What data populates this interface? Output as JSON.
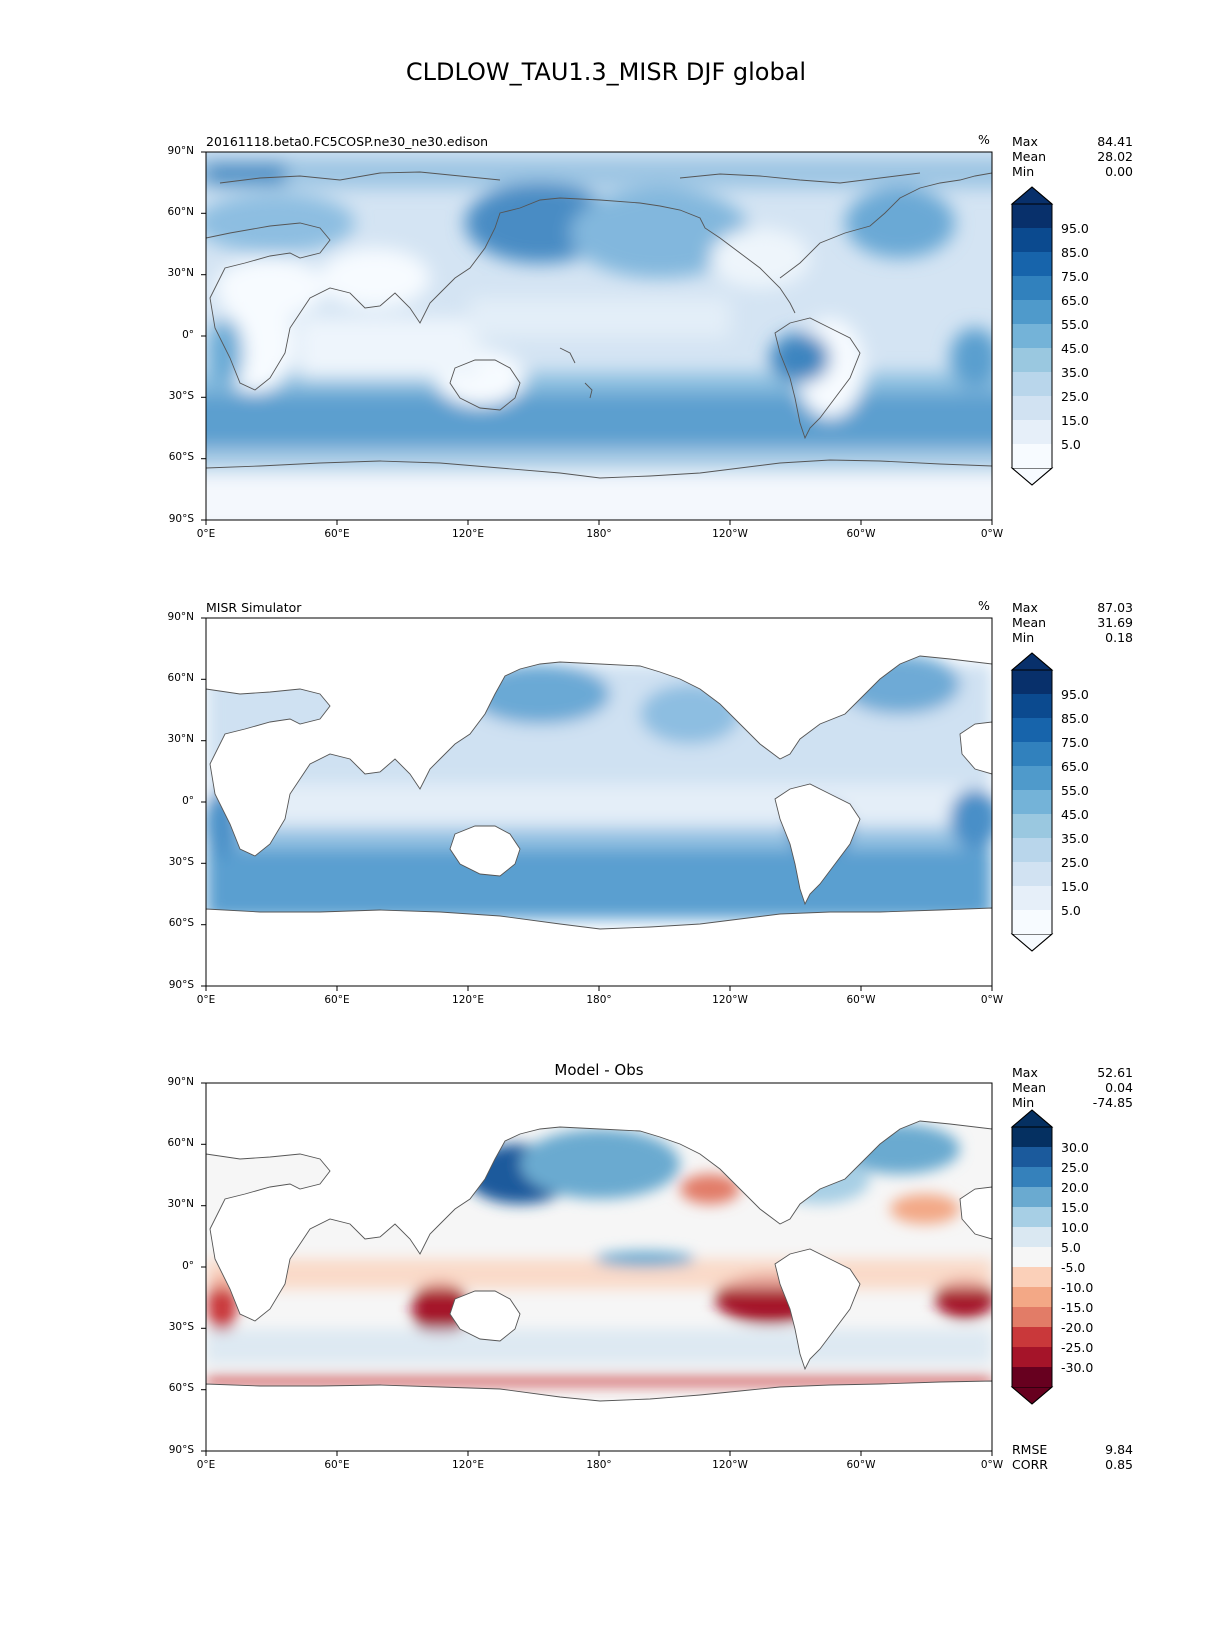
{
  "title": "CLDLOW_TAU1.3_MISR DJF global",
  "axes": {
    "lat_ticks": [
      "90°N",
      "60°N",
      "30°N",
      "0°",
      "30°S",
      "60°S",
      "90°S"
    ],
    "lon_ticks": [
      "0°E",
      "60°E",
      "120°E",
      "180°",
      "120°W",
      "60°W",
      "0°W"
    ]
  },
  "panels": [
    {
      "name": "model",
      "left_title": "20161118.beta0.FC5COSP.ne30_ne30.edison",
      "center_title": "",
      "units": "%",
      "stats": [
        {
          "label": "Max",
          "value": "84.41"
        },
        {
          "label": "Mean",
          "value": "28.02"
        },
        {
          "label": "Min",
          "value": "0.00"
        }
      ],
      "bottom_stats": [],
      "colorbar_labels": [
        "95.0",
        "85.0",
        "75.0",
        "65.0",
        "55.0",
        "45.0",
        "35.0",
        "25.0",
        "15.0",
        "5.0"
      ],
      "colorbar_colors": [
        "#f7fbff",
        "#e6eff9",
        "#d1e2f2",
        "#b9d6eb",
        "#9ac8e0",
        "#74b3d8",
        "#4f9acb",
        "#3181bd",
        "#1764ab",
        "#0b4a8f",
        "#08306b"
      ]
    },
    {
      "name": "obs",
      "left_title": "MISR Simulator",
      "center_title": "",
      "units": "%",
      "stats": [
        {
          "label": "Max",
          "value": "87.03"
        },
        {
          "label": "Mean",
          "value": "31.69"
        },
        {
          "label": "Min",
          "value": "0.18"
        }
      ],
      "bottom_stats": [],
      "colorbar_labels": [
        "95.0",
        "85.0",
        "75.0",
        "65.0",
        "55.0",
        "45.0",
        "35.0",
        "25.0",
        "15.0",
        "5.0"
      ],
      "colorbar_colors": [
        "#f7fbff",
        "#e6eff9",
        "#d1e2f2",
        "#b9d6eb",
        "#9ac8e0",
        "#74b3d8",
        "#4f9acb",
        "#3181bd",
        "#1764ab",
        "#0b4a8f",
        "#08306b"
      ]
    },
    {
      "name": "diff",
      "left_title": "",
      "center_title": "Model - Obs",
      "units": "",
      "stats": [
        {
          "label": "Max",
          "value": "52.61"
        },
        {
          "label": "Mean",
          "value": "0.04"
        },
        {
          "label": "Min",
          "value": "-74.85"
        }
      ],
      "bottom_stats": [
        {
          "label": "RMSE",
          "value": "9.84"
        },
        {
          "label": "CORR",
          "value": "0.85"
        }
      ],
      "colorbar_labels": [
        "30.0",
        "25.0",
        "20.0",
        "15.0",
        "10.0",
        "5.0",
        "-5.0",
        "-10.0",
        "-15.0",
        "-20.0",
        "-25.0",
        "-30.0"
      ],
      "colorbar_colors": [
        "#67001f",
        "#a51429",
        "#c9383a",
        "#e27c67",
        "#f3a886",
        "#fbd0b9",
        "#f6f6f6",
        "#dae8f2",
        "#a7cfe5",
        "#6aaad0",
        "#3581bb",
        "#1b5a9c",
        "#053061"
      ]
    }
  ]
}
